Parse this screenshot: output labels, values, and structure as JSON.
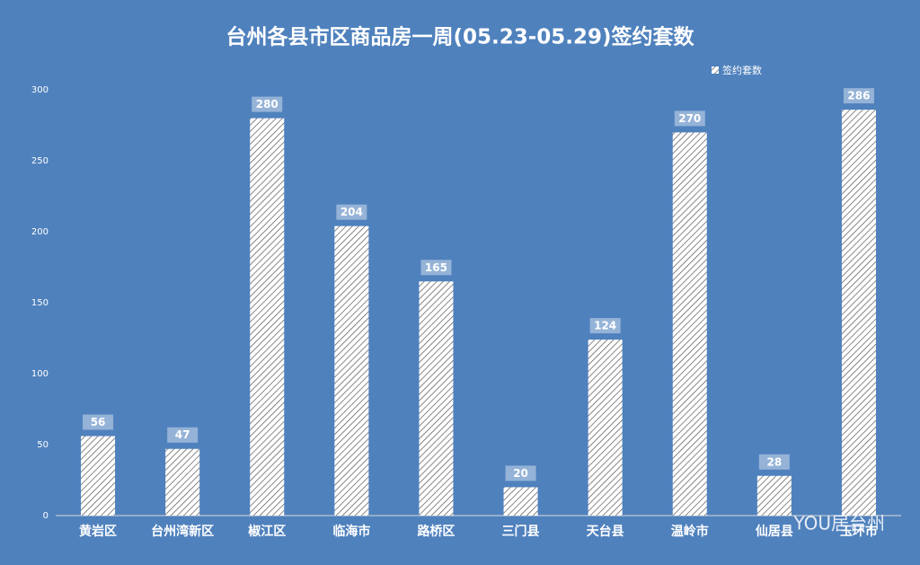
{
  "chart_data": {
    "type": "bar",
    "title": "台州各县市区商品房一周(05.23-05.29)签约套数",
    "categories": [
      "黄岩区",
      "台州湾新区",
      "椒江区",
      "临海市",
      "路桥区",
      "三门县",
      "天台县",
      "温岭市",
      "仙居县",
      "玉环市"
    ],
    "series": [
      {
        "name": "签约套数",
        "color": "#ffffff",
        "values": [
          56,
          47,
          280,
          204,
          165,
          20,
          124,
          270,
          28,
          286
        ]
      }
    ],
    "ylim": [
      0,
      300
    ],
    "yticks": [
      0,
      50,
      100,
      150,
      200,
      250,
      300
    ],
    "legend": "top-right",
    "watermark": "YOU居台州"
  }
}
